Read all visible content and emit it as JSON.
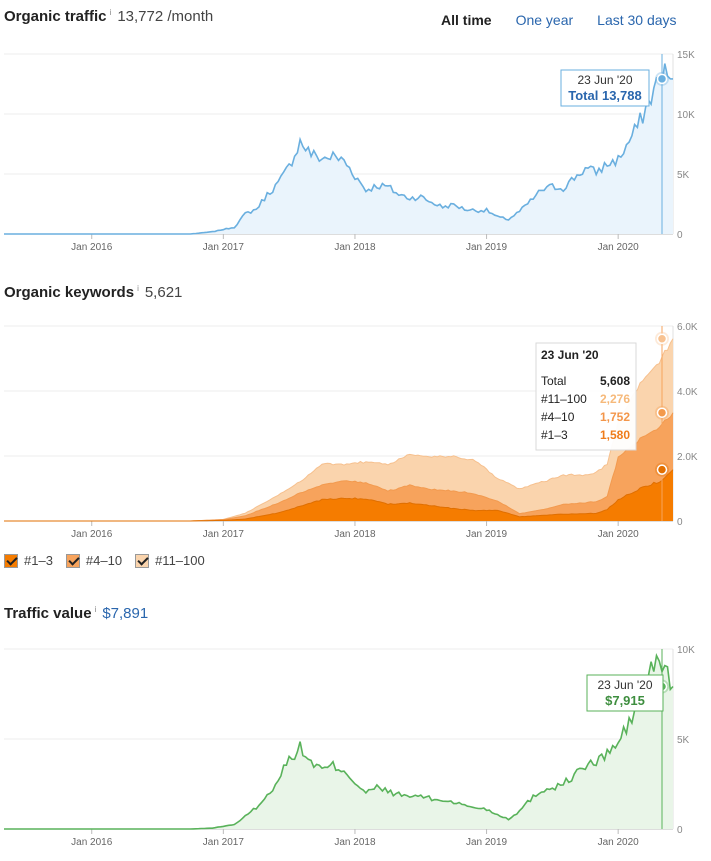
{
  "range_options": [
    "All time",
    "One year",
    "Last 30 days"
  ],
  "range_selected": 0,
  "headers": {
    "traffic": {
      "title": "Organic traffic",
      "info": "i",
      "value": "13,772 /month"
    },
    "keywords": {
      "title": "Organic keywords",
      "info": "i",
      "value": "5,621"
    },
    "value": {
      "title": "Traffic value",
      "info": "i",
      "value": "$7,891"
    }
  },
  "legend": [
    {
      "label": "#1–3",
      "color": "#f57c00"
    },
    {
      "label": "#4–10",
      "color": "#f7a35c"
    },
    {
      "label": "#11–100",
      "color": "#fad4ad"
    }
  ],
  "chart_data": [
    {
      "type": "area",
      "x_ticks": [
        "Jan 2016",
        "Jan 2017",
        "Jan 2018",
        "Jan 2019",
        "Jan 2020"
      ],
      "y_ticks": [
        "15K",
        "10K",
        "5K",
        "0"
      ],
      "ylim": [
        0,
        16000
      ],
      "color": "#6aafdf",
      "fill": "#eaf4fc",
      "series": [
        {
          "x": [
            "2015-05",
            "2016-10",
            "2016-12",
            "2017-01",
            "2017-02",
            "2017-03",
            "2017-04",
            "2017-05",
            "2017-06",
            "2017-07",
            "2017-08",
            "2017-09",
            "2017-10",
            "2017-11",
            "2017-12",
            "2018-01",
            "2018-02",
            "2018-03",
            "2018-04",
            "2018-05",
            "2018-06",
            "2018-07",
            "2018-08",
            "2018-09",
            "2018-10",
            "2018-11",
            "2018-12",
            "2019-01",
            "2019-02",
            "2019-03",
            "2019-04",
            "2019-05",
            "2019-06",
            "2019-07",
            "2019-08",
            "2019-09",
            "2019-10",
            "2019-11",
            "2019-12",
            "2020-01",
            "2020-02",
            "2020-03",
            "2020-04",
            "2020-05",
            "2020-06"
          ],
          "y": [
            0,
            0,
            200,
            400,
            600,
            1800,
            2200,
            3500,
            4500,
            6000,
            8200,
            7100,
            6700,
            6900,
            6500,
            5200,
            3900,
            4300,
            4200,
            3500,
            3200,
            3300,
            2800,
            2400,
            2600,
            2200,
            2100,
            2100,
            1500,
            1300,
            2000,
            2900,
            3900,
            4200,
            4100,
            5000,
            5800,
            5500,
            6200,
            6600,
            8200,
            10000,
            12200,
            14400,
            13788
          ]
        }
      ],
      "tooltip": {
        "date": "23 Jun '20",
        "label": "Total 13,788"
      }
    },
    {
      "type": "area",
      "x_ticks": [
        "Jan 2016",
        "Jan 2017",
        "Jan 2018",
        "Jan 2019",
        "Jan 2020"
      ],
      "y_ticks": [
        "6.0K",
        "4.0K",
        "2.0K",
        "0"
      ],
      "ylim": [
        0,
        6000
      ],
      "stacked": true,
      "series": [
        {
          "name": "#1–3",
          "color": "#f57c00",
          "x": [
            "2015-05",
            "2016-10",
            "2017-01",
            "2017-03",
            "2017-06",
            "2017-08",
            "2017-10",
            "2017-12",
            "2018-02",
            "2018-04",
            "2018-06",
            "2018-08",
            "2018-10",
            "2018-12",
            "2019-02",
            "2019-04",
            "2019-06",
            "2019-08",
            "2019-10",
            "2019-11",
            "2019-12",
            "2020-01",
            "2020-03",
            "2020-05",
            "2020-06"
          ],
          "y": [
            0,
            0,
            20,
            60,
            250,
            450,
            650,
            700,
            680,
            520,
            560,
            470,
            380,
            320,
            330,
            130,
            170,
            210,
            220,
            240,
            350,
            650,
            1000,
            1250,
            1580
          ]
        },
        {
          "name": "#4–10",
          "color": "#f7a35c",
          "x": [
            "2015-05",
            "2016-10",
            "2017-01",
            "2017-03",
            "2017-06",
            "2017-08",
            "2017-10",
            "2017-12",
            "2018-02",
            "2018-04",
            "2018-06",
            "2018-08",
            "2018-10",
            "2018-12",
            "2019-02",
            "2019-04",
            "2019-06",
            "2019-08",
            "2019-10",
            "2019-11",
            "2019-12",
            "2020-01",
            "2020-03",
            "2020-05",
            "2020-06"
          ],
          "y": [
            0,
            0,
            20,
            100,
            300,
            400,
            450,
            550,
            500,
            400,
            550,
            500,
            550,
            500,
            280,
            100,
            170,
            300,
            340,
            360,
            400,
            1300,
            1500,
            1720,
            1752
          ]
        },
        {
          "name": "#11–100",
          "color": "#fad4ad",
          "x": [
            "2015-05",
            "2016-10",
            "2017-01",
            "2017-03",
            "2017-06",
            "2017-08",
            "2017-10",
            "2017-12",
            "2018-02",
            "2018-04",
            "2018-06",
            "2018-08",
            "2018-10",
            "2018-12",
            "2019-02",
            "2019-04",
            "2019-06",
            "2019-08",
            "2019-10",
            "2019-11",
            "2019-12",
            "2020-01",
            "2020-03",
            "2020-05",
            "2020-06"
          ],
          "y": [
            0,
            0,
            10,
            80,
            250,
            350,
            650,
            500,
            650,
            800,
            950,
            1020,
            1050,
            1030,
            700,
            750,
            850,
            900,
            850,
            900,
            1000,
            1100,
            1700,
            2050,
            2276
          ]
        }
      ],
      "tooltip": {
        "date": "23 Jun '20",
        "rows": [
          {
            "label": "Total",
            "value": "5,608",
            "color": "#222222"
          },
          {
            "label": "#11–100",
            "value": "2,276",
            "color": "#f6b97a"
          },
          {
            "label": "#4–10",
            "value": "1,752",
            "color": "#f3964a"
          },
          {
            "label": "#1–3",
            "value": "1,580",
            "color": "#ef7c1a"
          }
        ]
      }
    },
    {
      "type": "area",
      "x_ticks": [
        "Jan 2016",
        "Jan 2017",
        "Jan 2018",
        "Jan 2019",
        "Jan 2020"
      ],
      "y_ticks": [
        "10K",
        "5K",
        "0"
      ],
      "ylim": [
        0,
        10000
      ],
      "color": "#59b25a",
      "fill": "#e9f5e8",
      "series": [
        {
          "x": [
            "2015-05",
            "2016-10",
            "2016-12",
            "2017-01",
            "2017-02",
            "2017-03",
            "2017-04",
            "2017-05",
            "2017-06",
            "2017-07",
            "2017-08",
            "2017-09",
            "2017-10",
            "2017-11",
            "2017-12",
            "2018-01",
            "2018-02",
            "2018-03",
            "2018-04",
            "2018-05",
            "2018-06",
            "2018-07",
            "2018-08",
            "2018-09",
            "2018-10",
            "2018-11",
            "2018-12",
            "2019-01",
            "2019-02",
            "2019-03",
            "2019-04",
            "2019-05",
            "2019-06",
            "2019-07",
            "2019-08",
            "2019-09",
            "2019-10",
            "2019-11",
            "2019-12",
            "2020-01",
            "2020-02",
            "2020-03",
            "2020-04",
            "2020-05",
            "2020-06"
          ],
          "y": [
            0,
            0,
            50,
            150,
            250,
            700,
            1200,
            1800,
            2800,
            3900,
            4500,
            3700,
            3300,
            3500,
            3300,
            2600,
            2000,
            2300,
            2100,
            1900,
            1800,
            1850,
            1650,
            1600,
            1500,
            1300,
            1200,
            1100,
            800,
            550,
            1000,
            1650,
            2150,
            2300,
            2500,
            3000,
            3500,
            3700,
            4200,
            4800,
            5800,
            7400,
            8900,
            9200,
            7915
          ]
        }
      ],
      "tooltip": {
        "date": "23 Jun '20",
        "label": "$7,915"
      }
    }
  ]
}
